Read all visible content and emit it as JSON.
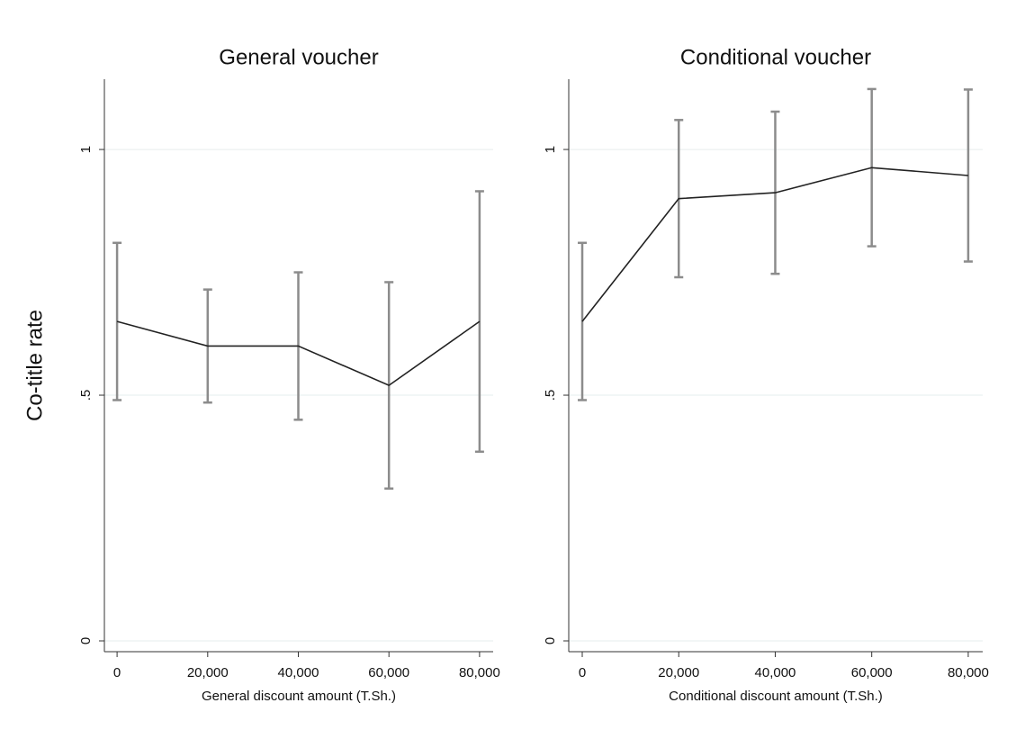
{
  "chart_data": [
    {
      "type": "line",
      "title": "General voucher",
      "ylabel": "Co-title rate",
      "xlabel": "General discount amount (T.Sh.)",
      "x": [
        0,
        20000,
        40000,
        60000,
        80000
      ],
      "series": [
        {
          "values": [
            0.65,
            0.6,
            0.6,
            0.52,
            0.65
          ],
          "errors": [
            0.16,
            0.115,
            0.15,
            0.21,
            0.265
          ],
          "color": "#222222",
          "error_color": "#8c8c8c"
        }
      ],
      "xlim": [
        -2800,
        83000
      ],
      "xticks": [
        0,
        {
          "value": 20000,
          "label": "20,000"
        },
        {
          "value": 40000,
          "label": "40,000"
        },
        {
          "value": 60000,
          "label": "60,000"
        },
        {
          "value": 80000,
          "label": "80,000"
        }
      ],
      "ylim": [
        -0.022,
        1.143
      ],
      "yticks": [
        0,
        {
          "value": 0.5,
          "label": ".5"
        },
        1
      ],
      "grid": true
    },
    {
      "type": "line",
      "title": "Conditional voucher",
      "xlabel": "Conditional discount amount (T.Sh.)",
      "x": [
        0,
        20000,
        40000,
        60000,
        80000
      ],
      "series": [
        {
          "values": [
            0.65,
            0.9,
            0.912,
            0.963,
            0.947
          ],
          "errors": [
            0.16,
            0.16,
            0.165,
            0.16,
            0.175
          ],
          "color": "#222222",
          "error_color": "#8c8c8c"
        }
      ],
      "xlim": [
        -2800,
        83000
      ],
      "xticks": [
        0,
        {
          "value": 20000,
          "label": "20,000"
        },
        {
          "value": 40000,
          "label": "40,000"
        },
        {
          "value": 60000,
          "label": "60,000"
        },
        {
          "value": 80000,
          "label": "80,000"
        }
      ],
      "ylim": [
        -0.022,
        1.143
      ],
      "yticks": [
        0,
        {
          "value": 0.5,
          "label": ".5"
        },
        1
      ],
      "grid": true
    }
  ]
}
